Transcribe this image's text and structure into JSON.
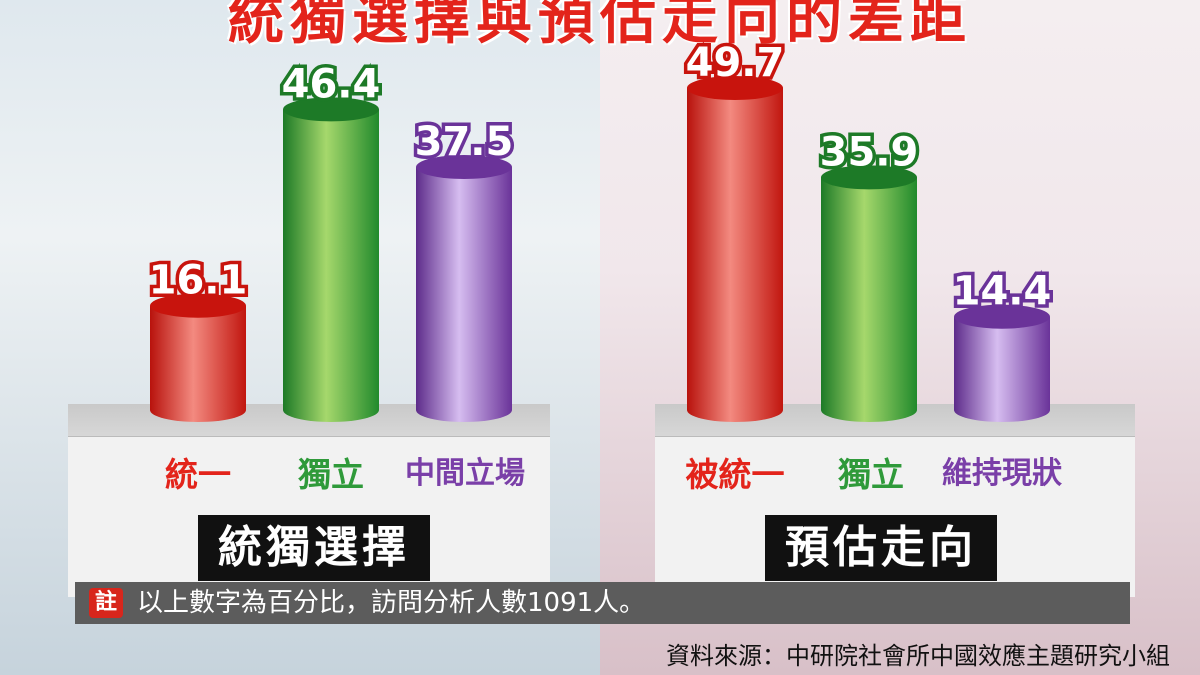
{
  "title": "統獨選擇與預估走向的差距",
  "colors": {
    "red": "#e3241b",
    "green": "#2f9a3a",
    "purple": "#7a3fa8"
  },
  "chart_data": [
    {
      "type": "bar",
      "title": "統獨選擇",
      "categories": [
        "統一",
        "獨立",
        "中間立場"
      ],
      "values": [
        16.1,
        46.4,
        37.5
      ],
      "value_labels": [
        "16.1",
        "46.4",
        "37.5"
      ],
      "bar_colors": [
        "red",
        "green",
        "purple"
      ],
      "ylim": [
        0,
        50
      ]
    },
    {
      "type": "bar",
      "title": "預估走向",
      "categories": [
        "被統一",
        "獨立",
        "維持現狀"
      ],
      "values": [
        49.7,
        35.9,
        14.4
      ],
      "value_labels": [
        "49.7",
        "35.9",
        "14.4"
      ],
      "bar_colors": [
        "red",
        "green",
        "purple"
      ],
      "ylim": [
        0,
        50
      ]
    }
  ],
  "note": {
    "badge": "註",
    "text": "以上數字為百分比，訪問分析人數1091人。"
  },
  "source": "資料來源：中研院社會所中國效應主題研究小組"
}
